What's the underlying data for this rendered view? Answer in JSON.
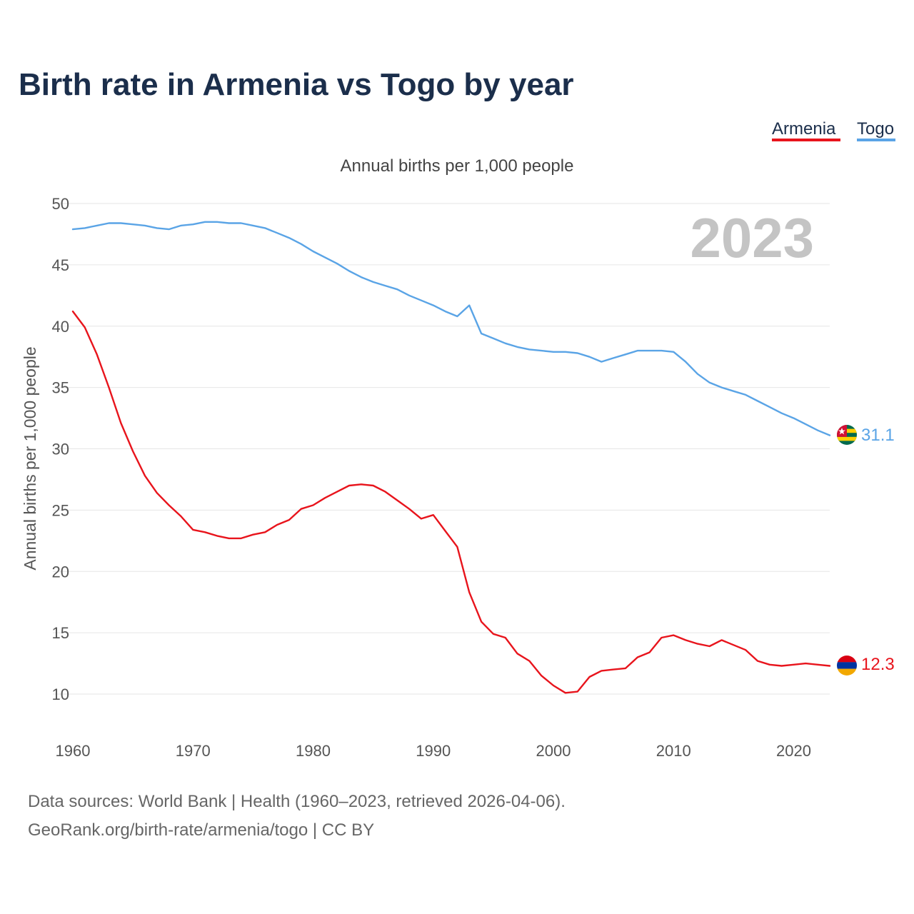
{
  "title": "Birth rate in Armenia vs Togo by year",
  "footer": {
    "line1": "Data sources: World Bank | Health (1960–2023, retrieved 2026-04-06).",
    "line2": "GeoRank.org/birth-rate/armenia/togo | CC BY"
  },
  "chart_data": {
    "type": "line",
    "title": "Birth rate in Armenia vs Togo by year",
    "subtitle": "Annual births per 1,000 people",
    "xlabel": "",
    "ylabel": "Annual births per 1,000 people",
    "year_label": "2023",
    "xlim": [
      1960,
      2023
    ],
    "ylim": [
      10,
      50
    ],
    "x_ticks": [
      1960,
      1970,
      1980,
      1990,
      2000,
      2010,
      2020
    ],
    "y_ticks": [
      10,
      15,
      20,
      25,
      30,
      35,
      40,
      45,
      50
    ],
    "legend_position": "top-right",
    "grid": true,
    "x": [
      1960,
      1961,
      1962,
      1963,
      1964,
      1965,
      1966,
      1967,
      1968,
      1969,
      1970,
      1971,
      1972,
      1973,
      1974,
      1975,
      1976,
      1977,
      1978,
      1979,
      1980,
      1981,
      1982,
      1983,
      1984,
      1985,
      1986,
      1987,
      1988,
      1989,
      1990,
      1991,
      1992,
      1993,
      1994,
      1995,
      1996,
      1997,
      1998,
      1999,
      2000,
      2001,
      2002,
      2003,
      2004,
      2005,
      2006,
      2007,
      2008,
      2009,
      2010,
      2011,
      2012,
      2013,
      2014,
      2015,
      2016,
      2017,
      2018,
      2019,
      2020,
      2021,
      2022,
      2023
    ],
    "series": [
      {
        "name": "Armenia",
        "color": "#e8141c",
        "flag": "armenia-flag",
        "end_label": "12.3",
        "values": [
          41.2,
          39.9,
          37.7,
          35.0,
          32.1,
          29.8,
          27.8,
          26.4,
          25.4,
          24.5,
          23.4,
          23.2,
          22.9,
          22.7,
          22.7,
          23.0,
          23.2,
          23.8,
          24.2,
          25.1,
          25.4,
          26.0,
          26.5,
          27.0,
          27.1,
          27.0,
          26.5,
          25.8,
          25.1,
          24.3,
          24.6,
          23.3,
          22.0,
          18.3,
          15.9,
          14.9,
          14.6,
          13.3,
          12.7,
          11.5,
          10.7,
          10.1,
          10.2,
          11.4,
          11.9,
          12.0,
          12.1,
          13.0,
          13.4,
          14.6,
          14.8,
          14.4,
          14.1,
          13.9,
          14.4,
          14.0,
          13.6,
          12.7,
          12.4,
          12.3,
          12.4,
          12.5,
          12.4,
          12.3
        ]
      },
      {
        "name": "Togo",
        "color": "#5aa4e6",
        "flag": "togo-flag",
        "end_label": "31.1",
        "values": [
          47.9,
          48.0,
          48.2,
          48.4,
          48.4,
          48.3,
          48.2,
          48.0,
          47.9,
          48.2,
          48.3,
          48.5,
          48.5,
          48.4,
          48.4,
          48.2,
          48.0,
          47.6,
          47.2,
          46.7,
          46.1,
          45.6,
          45.1,
          44.5,
          44.0,
          43.6,
          43.3,
          43.0,
          42.5,
          42.1,
          41.7,
          41.2,
          40.8,
          41.7,
          39.4,
          39.0,
          38.6,
          38.3,
          38.1,
          38.0,
          37.9,
          37.9,
          37.8,
          37.5,
          37.1,
          37.4,
          37.7,
          38.0,
          38.0,
          38.0,
          37.9,
          37.1,
          36.1,
          35.4,
          35.0,
          34.7,
          34.4,
          33.9,
          33.4,
          32.9,
          32.5,
          32.0,
          31.5,
          31.1
        ]
      }
    ]
  }
}
